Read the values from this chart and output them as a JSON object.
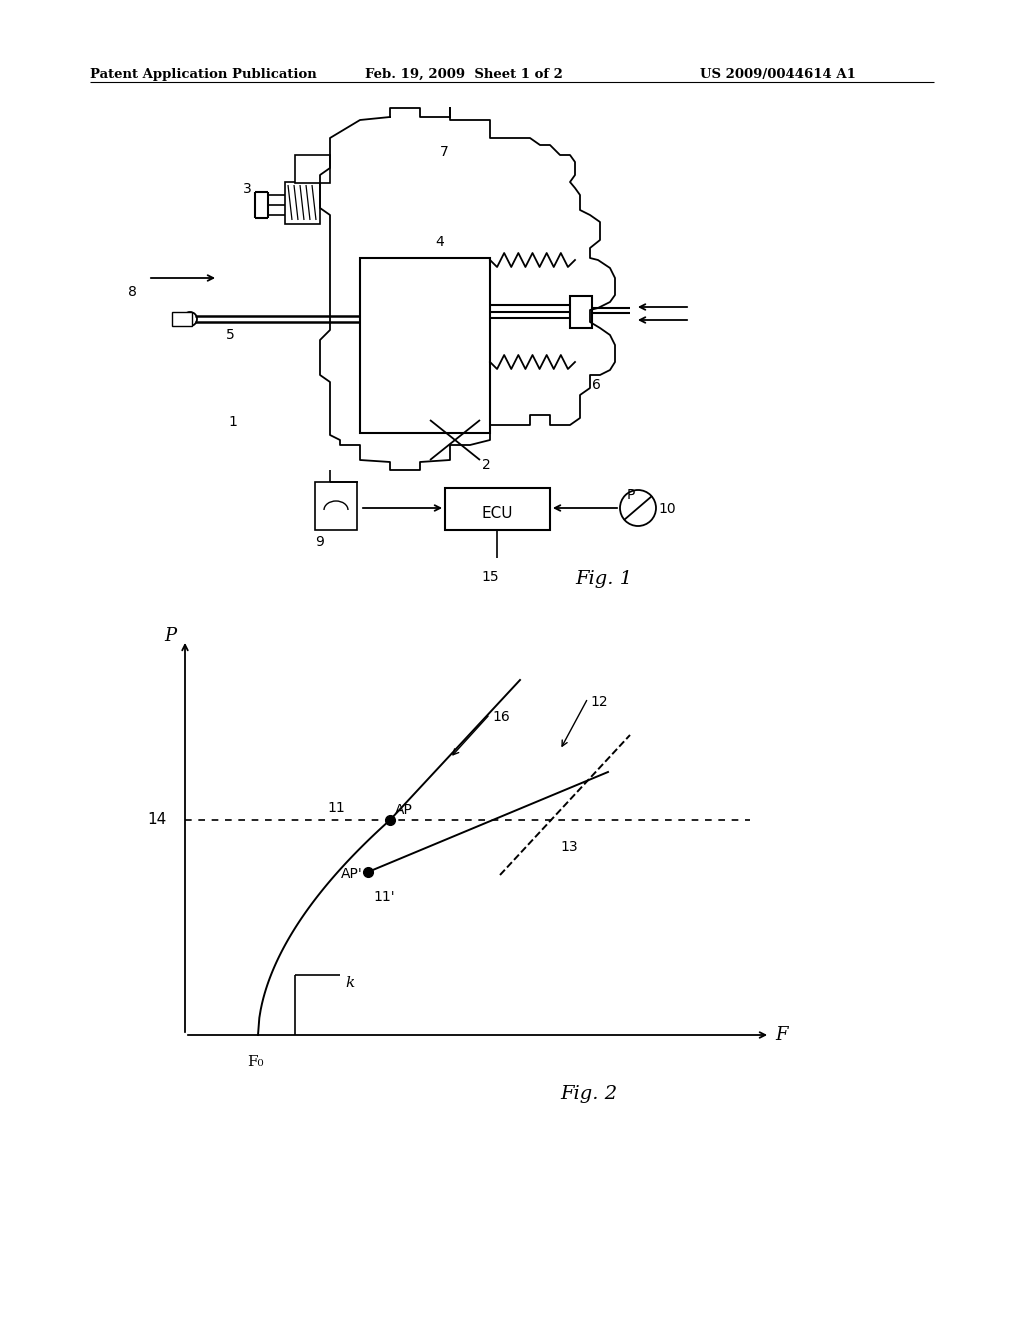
{
  "bg_color": "#ffffff",
  "header_left": "Patent Application Publication",
  "header_center": "Feb. 19, 2009  Sheet 1 of 2",
  "header_right": "US 2009/0044614 A1",
  "fig1_label": "Fig. 1",
  "fig2_label": "Fig. 2"
}
